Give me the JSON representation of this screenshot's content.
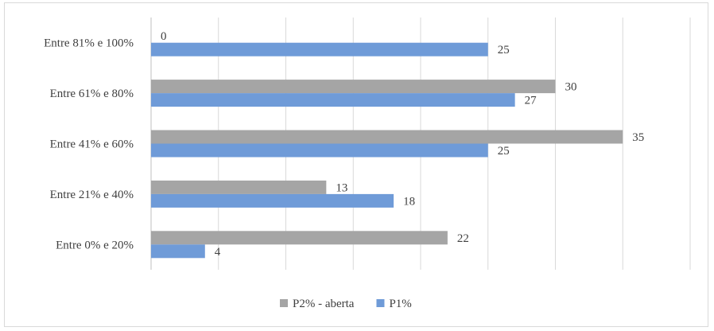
{
  "chart_data": {
    "type": "bar",
    "orientation": "horizontal",
    "categories": [
      "Entre 0% e 20%",
      "Entre 21% e 40%",
      "Entre 41% e 60%",
      "Entre 61% e 80%",
      "Entre 81% e 100%"
    ],
    "series": [
      {
        "name": "P2% - aberta",
        "color": "#a5a5a5",
        "values": [
          22,
          13,
          35,
          30,
          0
        ]
      },
      {
        "name": "P1%",
        "color": "#6f9bd8",
        "values": [
          4,
          18,
          25,
          27,
          25
        ]
      }
    ],
    "title": "",
    "xlabel": "",
    "ylabel": "",
    "xlim": [
      0,
      40
    ],
    "grid": "vertical",
    "legend_position": "bottom",
    "data_labels": true
  }
}
